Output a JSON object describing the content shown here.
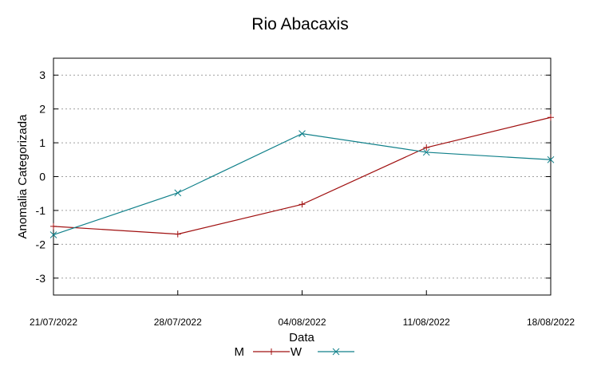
{
  "chart_data": {
    "type": "line",
    "title": "Rio Abacaxis",
    "xlabel": "Data",
    "ylabel": "Anomalia Categorizada",
    "categories": [
      "21/07/2022",
      "28/07/2022",
      "04/08/2022",
      "11/08/2022",
      "18/08/2022"
    ],
    "ylim": [
      -3.5,
      3.5
    ],
    "yticks": [
      3,
      2,
      1,
      0,
      -1,
      -2,
      -3
    ],
    "ytick_labels": [
      "3",
      "2",
      "1",
      "0",
      "-1",
      "-2",
      "-3"
    ],
    "grid": "horizontal dotted",
    "legend_position": "bottom",
    "series": [
      {
        "name": "M",
        "color": "#a01010",
        "marker": "plus",
        "values": [
          -1.47,
          -1.7,
          -0.82,
          0.86,
          1.75
        ]
      },
      {
        "name": "W",
        "color": "#10808a",
        "marker": "cross",
        "values": [
          -1.72,
          -0.48,
          1.27,
          0.72,
          0.5
        ]
      }
    ]
  }
}
